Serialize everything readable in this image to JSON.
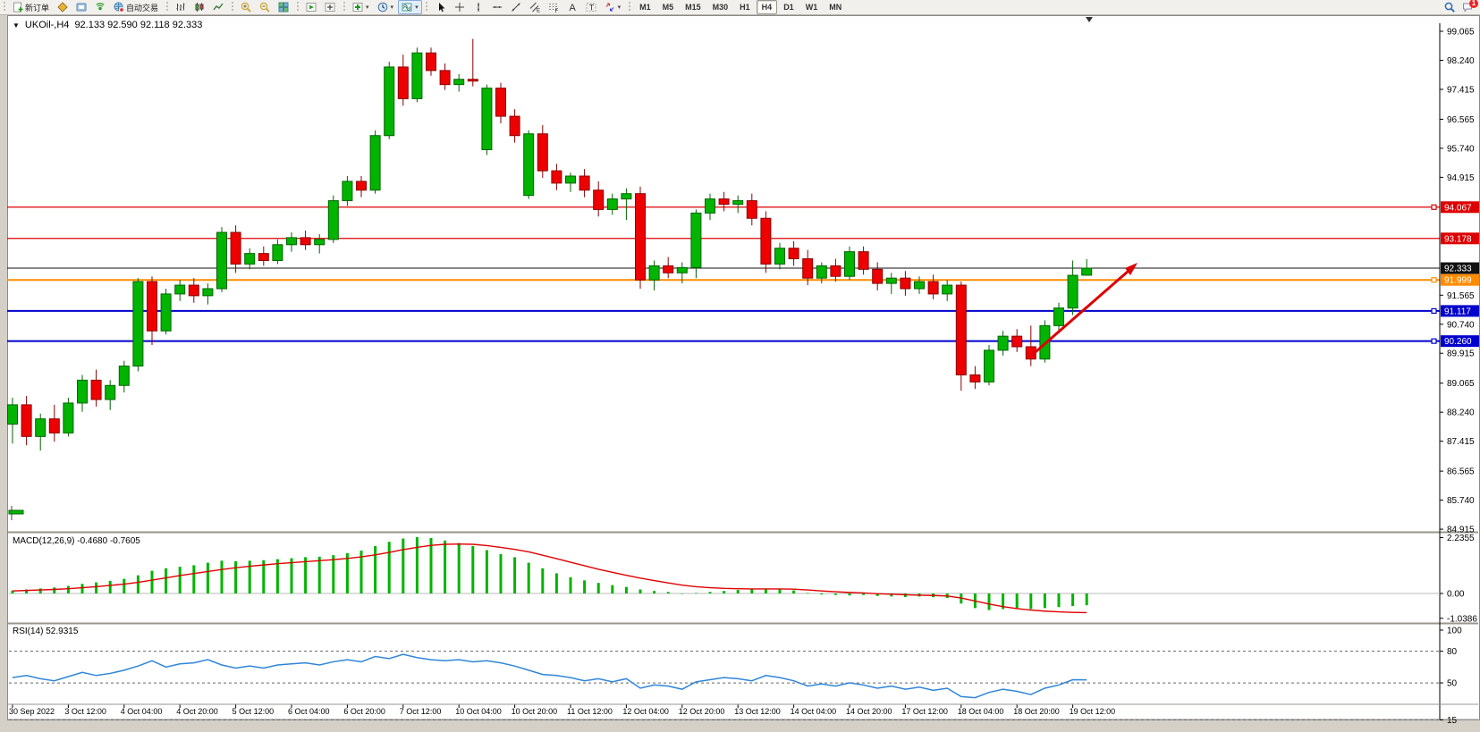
{
  "toolbar": {
    "groups": [
      {
        "name": "trade",
        "items": [
          {
            "name": "new-order-button",
            "icon": "new-order",
            "label": "新订单"
          },
          {
            "name": "chart-profile-button",
            "icon": "gold-chart"
          },
          {
            "name": "terminal-button",
            "icon": "terminal"
          },
          {
            "name": "signals-button",
            "icon": "signal"
          },
          {
            "name": "auto-trading-button",
            "icon": "autotrade-globe",
            "label": "自动交易"
          }
        ]
      },
      {
        "name": "chart-types",
        "items": [
          {
            "name": "bar-chart-button",
            "icon": "bars"
          },
          {
            "name": "candlestick-chart-button",
            "icon": "candles"
          },
          {
            "name": "line-chart-button",
            "icon": "linechart"
          }
        ]
      },
      {
        "name": "zoom",
        "items": [
          {
            "name": "zoom-in-button",
            "icon": "zoom-in"
          },
          {
            "name": "zoom-out-button",
            "icon": "zoom-out"
          },
          {
            "name": "tile-windows-button",
            "icon": "tile"
          }
        ]
      },
      {
        "name": "arrange",
        "items": [
          {
            "name": "auto-scroll-button",
            "icon": "profile-next"
          },
          {
            "name": "chart-shift-button",
            "icon": "profile-prev"
          }
        ]
      },
      {
        "name": "insert",
        "items": [
          {
            "name": "add-indicator-button",
            "icon": "add-plus",
            "caret": true
          },
          {
            "name": "period-button",
            "icon": "period-clock",
            "caret": true
          },
          {
            "name": "template-button",
            "icon": "indicator-box",
            "active": true,
            "caret": true
          }
        ]
      },
      {
        "name": "draw",
        "items": [
          {
            "name": "cursor-button",
            "icon": "cursor"
          },
          {
            "name": "crosshair-button",
            "icon": "crosshair"
          },
          {
            "name": "vertical-line-button",
            "icon": "vline"
          },
          {
            "name": "horizontal-line-button",
            "icon": "hline"
          },
          {
            "name": "trendline-button",
            "icon": "tline"
          },
          {
            "name": "equidistant-channel-button",
            "icon": "channel"
          },
          {
            "name": "fibonacci-button",
            "icon": "fibo"
          },
          {
            "name": "text-button",
            "icon": "text-a"
          },
          {
            "name": "text-label-button",
            "icon": "label-t"
          },
          {
            "name": "arrows-button",
            "icon": "arrows",
            "caret": true
          }
        ]
      },
      {
        "name": "timeframes",
        "timeframes": [
          "M1",
          "M5",
          "M15",
          "M30",
          "H1",
          "H4",
          "D1",
          "W1",
          "MN"
        ],
        "active": "H4"
      }
    ],
    "right": {
      "search_icon": "search",
      "chat_icon": "chat",
      "badge": "1"
    }
  },
  "chart": {
    "title_symbol": "UKOil-,H4",
    "title_ohlc": "92.133 92.590 92.118 92.333",
    "menu_glyph": "▼"
  },
  "indicators": {
    "macd_label": "MACD(12,26,9) -0.4680 -0.7605",
    "rsi_label": "RSI(14) 52.9315",
    "macd_axis": [
      "2.2355",
      "0.00",
      "-1.0386"
    ],
    "rsi_axis": [
      "100",
      "80",
      "50",
      "15"
    ]
  },
  "price_axis_ticks": [
    "99.065",
    "98.240",
    "97.415",
    "96.565",
    "95.740",
    "94.915",
    "91.565",
    "90.740",
    "89.915",
    "89.065",
    "88.240",
    "87.415",
    "86.565",
    "85.740",
    "84.915"
  ],
  "levels": [
    {
      "label": "94.067",
      "price": 94.067,
      "color": "#dd0000",
      "width": 1.2,
      "anchor": true
    },
    {
      "label": "93.178",
      "price": 93.178,
      "color": "#dd0000",
      "width": 1.2,
      "anchor": false
    },
    {
      "label": "92.333",
      "price": 92.333,
      "color": "#111111",
      "width": 1,
      "anchor": false
    },
    {
      "label": "91.999",
      "price": 91.999,
      "color": "#ff8c00",
      "width": 2,
      "anchor": true
    },
    {
      "label": "91.117",
      "price": 91.117,
      "color": "#0000cc",
      "width": 2,
      "anchor": true
    },
    {
      "label": "90.260",
      "price": 90.26,
      "color": "#0000cc",
      "width": 2,
      "anchor": true
    }
  ],
  "arrow_object": {
    "color": "#dd0000",
    "from": [
      1152,
      399
    ],
    "to": [
      1266,
      299
    ]
  },
  "colors": {
    "up": "#00b400",
    "up_border": "#006400",
    "down": "#ee0000",
    "down_border": "#8b0000",
    "macd_bar": "#00b400",
    "macd_signal": "#e00000",
    "rsi_line": "#2f86d8",
    "axis": "#000000"
  },
  "chart_data": {
    "type": "candlestick",
    "symbol": "UKOil-",
    "timeframe": "H4",
    "x_labels": [
      "30 Sep 2022",
      "3 Oct 12:00",
      "4 Oct 04:00",
      "4 Oct 20:00",
      "5 Oct 12:00",
      "6 Oct 04:00",
      "6 Oct 20:00",
      "7 Oct 12:00",
      "10 Oct 04:00",
      "10 Oct 20:00",
      "11 Oct 12:00",
      "12 Oct 04:00",
      "12 Oct 20:00",
      "13 Oct 12:00",
      "14 Oct 04:00",
      "14 Oct 20:00",
      "17 Oct 12:00",
      "18 Oct 04:00",
      "18 Oct 20:00",
      "19 Oct 12:00"
    ],
    "tick_every": 4,
    "ylim": [
      84.915,
      99.065
    ],
    "candles": [
      [
        87.9,
        88.65,
        87.35,
        88.45
      ],
      [
        88.45,
        88.7,
        87.3,
        87.55
      ],
      [
        87.55,
        88.2,
        87.15,
        88.05
      ],
      [
        88.05,
        88.45,
        87.4,
        87.65
      ],
      [
        87.65,
        88.65,
        87.55,
        88.5
      ],
      [
        88.5,
        89.3,
        88.25,
        89.15
      ],
      [
        89.15,
        89.45,
        88.4,
        88.6
      ],
      [
        88.6,
        89.15,
        88.3,
        89.0
      ],
      [
        89.0,
        89.7,
        88.8,
        89.55
      ],
      [
        89.55,
        92.05,
        89.4,
        91.95
      ],
      [
        91.95,
        92.1,
        90.15,
        90.55
      ],
      [
        90.55,
        91.75,
        90.45,
        91.6
      ],
      [
        91.6,
        92.0,
        91.4,
        91.85
      ],
      [
        91.85,
        92.05,
        91.35,
        91.55
      ],
      [
        91.55,
        91.9,
        91.3,
        91.75
      ],
      [
        91.75,
        93.5,
        91.65,
        93.35
      ],
      [
        93.35,
        93.55,
        92.2,
        92.45
      ],
      [
        92.45,
        92.9,
        92.3,
        92.75
      ],
      [
        92.75,
        92.95,
        92.4,
        92.55
      ],
      [
        92.55,
        93.15,
        92.45,
        93.0
      ],
      [
        93.0,
        93.35,
        92.8,
        93.2
      ],
      [
        93.2,
        93.4,
        92.85,
        93.0
      ],
      [
        93.0,
        93.3,
        92.75,
        93.15
      ],
      [
        93.15,
        94.4,
        93.05,
        94.25
      ],
      [
        94.25,
        94.95,
        94.1,
        94.8
      ],
      [
        94.8,
        94.95,
        94.35,
        94.55
      ],
      [
        94.55,
        96.25,
        94.45,
        96.1
      ],
      [
        96.1,
        98.2,
        96.0,
        98.05
      ],
      [
        98.05,
        98.4,
        96.95,
        97.15
      ],
      [
        97.15,
        98.6,
        97.05,
        98.45
      ],
      [
        98.45,
        98.6,
        97.8,
        97.95
      ],
      [
        97.95,
        98.15,
        97.4,
        97.55
      ],
      [
        97.55,
        97.85,
        97.35,
        97.7
      ],
      [
        97.7,
        98.85,
        97.5,
        97.65
      ],
      [
        95.7,
        97.55,
        95.55,
        97.45
      ],
      [
        97.45,
        97.6,
        96.45,
        96.65
      ],
      [
        96.65,
        96.85,
        95.9,
        96.1
      ],
      [
        94.4,
        96.25,
        94.3,
        96.15
      ],
      [
        96.15,
        96.4,
        94.9,
        95.1
      ],
      [
        95.1,
        95.3,
        94.55,
        94.75
      ],
      [
        94.75,
        95.05,
        94.5,
        94.95
      ],
      [
        94.95,
        95.15,
        94.35,
        94.55
      ],
      [
        94.55,
        94.8,
        93.8,
        94.0
      ],
      [
        94.0,
        94.45,
        93.85,
        94.3
      ],
      [
        94.3,
        94.6,
        93.7,
        94.45
      ],
      [
        94.45,
        94.65,
        91.75,
        92.0
      ],
      [
        92.0,
        92.55,
        91.7,
        92.4
      ],
      [
        92.4,
        92.65,
        92.05,
        92.2
      ],
      [
        92.2,
        92.5,
        91.9,
        92.35
      ],
      [
        92.35,
        94.0,
        92.05,
        93.9
      ],
      [
        93.9,
        94.45,
        93.7,
        94.3
      ],
      [
        94.3,
        94.5,
        93.95,
        94.15
      ],
      [
        94.15,
        94.4,
        93.9,
        94.25
      ],
      [
        94.25,
        94.45,
        93.55,
        93.75
      ],
      [
        93.75,
        93.95,
        92.2,
        92.45
      ],
      [
        92.45,
        93.05,
        92.3,
        92.9
      ],
      [
        92.9,
        93.1,
        92.4,
        92.6
      ],
      [
        92.6,
        92.85,
        91.85,
        92.05
      ],
      [
        92.05,
        92.5,
        91.9,
        92.4
      ],
      [
        92.4,
        92.6,
        91.95,
        92.1
      ],
      [
        92.1,
        92.95,
        92.0,
        92.8
      ],
      [
        92.8,
        92.95,
        92.15,
        92.3
      ],
      [
        92.3,
        92.5,
        91.7,
        91.9
      ],
      [
        91.9,
        92.2,
        91.6,
        92.05
      ],
      [
        92.05,
        92.25,
        91.55,
        91.75
      ],
      [
        91.75,
        92.1,
        91.6,
        91.95
      ],
      [
        91.95,
        92.15,
        91.45,
        91.6
      ],
      [
        91.6,
        92.0,
        91.4,
        91.85
      ],
      [
        91.85,
        91.95,
        88.85,
        89.3
      ],
      [
        89.3,
        89.55,
        88.9,
        89.1
      ],
      [
        89.1,
        90.15,
        89.0,
        90.0
      ],
      [
        90.0,
        90.55,
        89.85,
        90.4
      ],
      [
        90.4,
        90.6,
        89.95,
        90.1
      ],
      [
        90.1,
        90.7,
        89.55,
        89.75
      ],
      [
        89.75,
        90.85,
        89.65,
        90.7
      ],
      [
        90.7,
        91.35,
        90.55,
        91.2
      ],
      [
        91.2,
        92.55,
        91.0,
        92.13
      ],
      [
        92.133,
        92.59,
        92.118,
        92.333
      ]
    ],
    "macd": {
      "title": "MACD(12,26,9)",
      "current_macd": -0.468,
      "current_signal": -0.7605,
      "ylim": [
        -1.0386,
        2.2355
      ],
      "histogram": [
        0.12,
        0.16,
        0.2,
        0.24,
        0.3,
        0.38,
        0.44,
        0.5,
        0.58,
        0.72,
        0.9,
        1.0,
        1.06,
        1.12,
        1.22,
        1.3,
        1.28,
        1.3,
        1.32,
        1.36,
        1.4,
        1.44,
        1.46,
        1.52,
        1.6,
        1.7,
        1.88,
        2.05,
        2.18,
        2.2355,
        2.2,
        2.1,
        2.0,
        1.88,
        1.72,
        1.56,
        1.44,
        1.22,
        1.0,
        0.8,
        0.64,
        0.52,
        0.42,
        0.33,
        0.26,
        0.16,
        0.1,
        0.06,
        -0.02,
        0.02,
        0.06,
        0.1,
        0.14,
        0.16,
        0.18,
        0.16,
        0.12,
        0.02,
        -0.04,
        -0.06,
        -0.08,
        -0.06,
        -0.1,
        -0.12,
        -0.14,
        -0.12,
        -0.15,
        -0.18,
        -0.4,
        -0.58,
        -0.66,
        -0.62,
        -0.58,
        -0.62,
        -0.58,
        -0.54,
        -0.5,
        -0.468
      ],
      "signal": [
        0.1,
        0.12,
        0.14,
        0.16,
        0.19,
        0.23,
        0.27,
        0.32,
        0.37,
        0.44,
        0.53,
        0.62,
        0.71,
        0.79,
        0.87,
        0.95,
        1.02,
        1.08,
        1.13,
        1.18,
        1.22,
        1.26,
        1.3,
        1.34,
        1.39,
        1.45,
        1.53,
        1.63,
        1.74,
        1.83,
        1.91,
        1.95,
        1.96,
        1.95,
        1.9,
        1.83,
        1.75,
        1.65,
        1.52,
        1.38,
        1.24,
        1.1,
        0.96,
        0.84,
        0.72,
        0.61,
        0.51,
        0.42,
        0.33,
        0.27,
        0.23,
        0.2,
        0.19,
        0.18,
        0.18,
        0.18,
        0.17,
        0.14,
        0.1,
        0.07,
        0.04,
        0.02,
        -0.01,
        -0.03,
        -0.05,
        -0.07,
        -0.08,
        -0.1,
        -0.18,
        -0.3,
        -0.42,
        -0.52,
        -0.6,
        -0.66,
        -0.7,
        -0.73,
        -0.75,
        -0.7605
      ]
    },
    "rsi": {
      "title": "RSI(14)",
      "current": 52.9315,
      "levels": [
        80,
        50,
        15
      ],
      "values": [
        55,
        57,
        54,
        52,
        56,
        60,
        57,
        59,
        62,
        66,
        71,
        65,
        68,
        69,
        72,
        67,
        64,
        66,
        64,
        67,
        68,
        69,
        67,
        70,
        72,
        70,
        75,
        73,
        77,
        74,
        72,
        71,
        72,
        70,
        71,
        69,
        66,
        62,
        58,
        57,
        55,
        52,
        54,
        51,
        54,
        45,
        48,
        47,
        44,
        51,
        53,
        55,
        54,
        52,
        57,
        55,
        52,
        47,
        49,
        47,
        50,
        48,
        45,
        47,
        44,
        46,
        43,
        45,
        37,
        36,
        41,
        44,
        42,
        39,
        45,
        48,
        53,
        52.93
      ]
    }
  }
}
